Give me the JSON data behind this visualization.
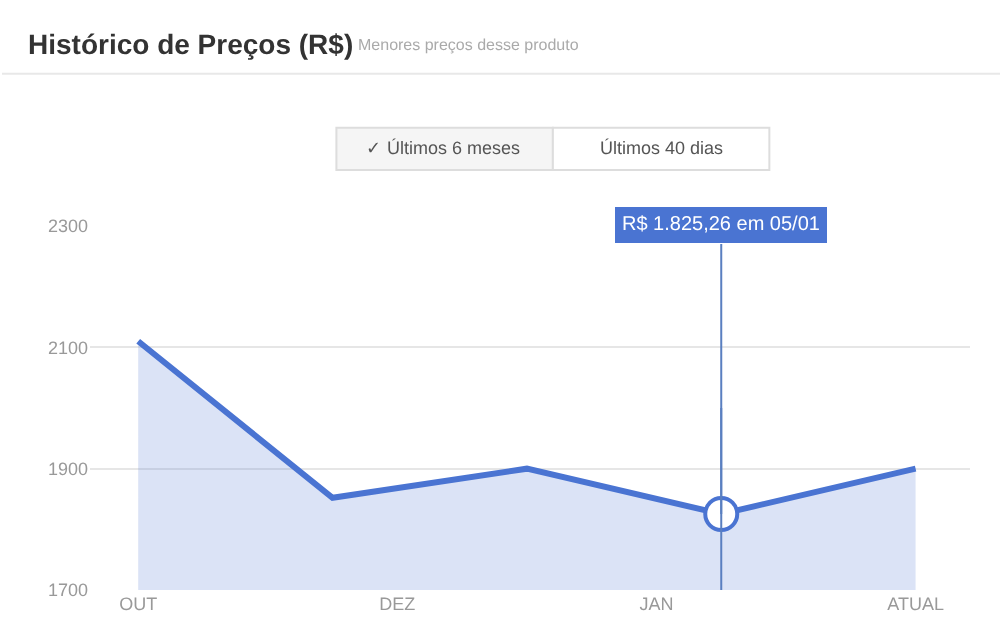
{
  "chart_data": {
    "type": "area",
    "title": "Histórico de Preços (R$)",
    "subtitle": "Menores preços desse produto",
    "categories": [
      "OUT",
      null,
      null,
      null,
      "DEZ",
      null,
      null,
      null,
      "JAN",
      null,
      null,
      null,
      "ATUAL"
    ],
    "series": [
      {
        "color": "#4a74d2",
        "values": [
          2110,
          null,
          null,
          1852,
          null,
          null,
          1900,
          null,
          null,
          1825.26,
          null,
          null,
          1900
        ]
      }
    ],
    "ylim": [
      1700,
      2300
    ],
    "yticks": [
      1700,
      1900,
      2100,
      2300
    ],
    "grid": "y",
    "marker": "none",
    "annotations": [
      "✓ Últimos 6 meses",
      "Últimos 40 dias",
      {
        "text": "R$ 1.825,26 em 05/01",
        "y": 1825.26
      }
    ]
  }
}
